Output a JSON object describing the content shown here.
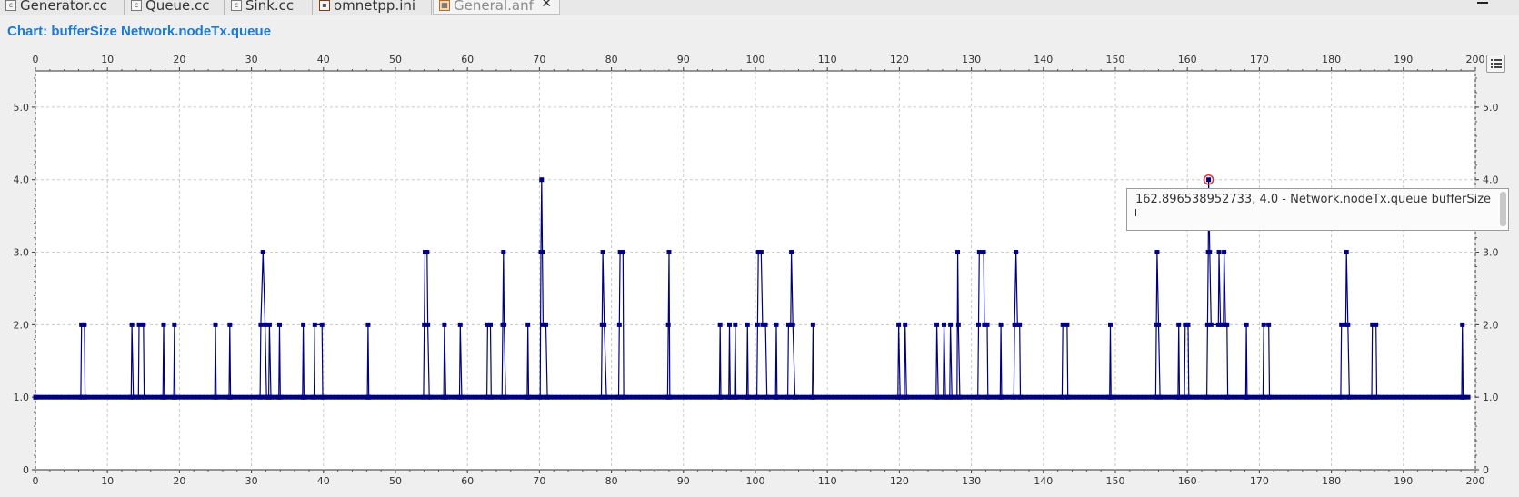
{
  "tabs": [
    {
      "label": "Generator.cc",
      "icon": "cpp-file-icon"
    },
    {
      "label": "Queue.cc",
      "icon": "cpp-file-icon"
    },
    {
      "label": "Sink.cc",
      "icon": "cpp-file-icon"
    },
    {
      "label": "omnetpp.ini",
      "icon": "ini-file-icon"
    },
    {
      "label": "General.anf",
      "icon": "analysis-file-icon",
      "active": true
    }
  ],
  "tooltip": {
    "text": "162.896538952733, 4.0 - Network.nodeTx.queue bufferSize"
  },
  "colors": {
    "line": "#000080",
    "title": "#1a7ad9",
    "highlight": "#e03030"
  },
  "chart_data": {
    "type": "line",
    "title": "Chart: bufferSize Network.nodeTx.queue",
    "xlabel": "",
    "ylabel": "",
    "xlim": [
      0,
      200
    ],
    "ylim": [
      0,
      5.5
    ],
    "xticks": [
      0,
      10,
      20,
      30,
      40,
      50,
      60,
      70,
      80,
      90,
      100,
      110,
      120,
      130,
      140,
      150,
      160,
      170,
      180,
      190,
      200
    ],
    "xtick_labels": [
      "0",
      "10",
      "20",
      "30",
      "40",
      "50",
      "60",
      "70",
      "80",
      "90",
      "100",
      "110",
      "120",
      "130",
      "140",
      "150",
      "160",
      "170",
      "180",
      "190",
      "200"
    ],
    "yticks": [
      0,
      1,
      2,
      3,
      4,
      5
    ],
    "ytick_labels": [
      "0",
      "1.0",
      "2.0",
      "3.0",
      "4.0",
      "5.0"
    ],
    "grid": true,
    "series": [
      {
        "values": [
          [
            0,
            1
          ],
          [
            6.3,
            1
          ],
          [
            6.4,
            2
          ],
          [
            6.8,
            2
          ],
          [
            6.9,
            1
          ],
          [
            13.3,
            1
          ],
          [
            13.4,
            2
          ],
          [
            13.6,
            1
          ],
          [
            14.3,
            1
          ],
          [
            14.4,
            2
          ],
          [
            15.0,
            2
          ],
          [
            15.1,
            1
          ],
          [
            17.7,
            1
          ],
          [
            17.8,
            2
          ],
          [
            17.9,
            1
          ],
          [
            19.2,
            1
          ],
          [
            19.3,
            2
          ],
          [
            19.4,
            1
          ],
          [
            24.9,
            1
          ],
          [
            25.0,
            2
          ],
          [
            25.1,
            1
          ],
          [
            26.9,
            1
          ],
          [
            27.0,
            2
          ],
          [
            27.1,
            1
          ],
          [
            31.2,
            1
          ],
          [
            31.3,
            2
          ],
          [
            31.6,
            3
          ],
          [
            31.9,
            2
          ],
          [
            32.1,
            1
          ],
          [
            32.4,
            1
          ],
          [
            32.5,
            2
          ],
          [
            32.7,
            1
          ],
          [
            33.8,
            1
          ],
          [
            33.9,
            2
          ],
          [
            34.0,
            1
          ],
          [
            37.1,
            1
          ],
          [
            37.2,
            2
          ],
          [
            37.3,
            1
          ],
          [
            38.7,
            1
          ],
          [
            38.8,
            2
          ],
          [
            39.8,
            2
          ],
          [
            39.9,
            1
          ],
          [
            46.1,
            1
          ],
          [
            46.2,
            2
          ],
          [
            46.3,
            1
          ],
          [
            53.9,
            1
          ],
          [
            54.0,
            2
          ],
          [
            54.1,
            3
          ],
          [
            54.4,
            3
          ],
          [
            54.5,
            2
          ],
          [
            54.7,
            1
          ],
          [
            56.7,
            1
          ],
          [
            56.8,
            2
          ],
          [
            57.0,
            1
          ],
          [
            58.9,
            1
          ],
          [
            59.0,
            2
          ],
          [
            59.2,
            1
          ],
          [
            62.7,
            1
          ],
          [
            62.8,
            2
          ],
          [
            63.2,
            2
          ],
          [
            63.3,
            1
          ],
          [
            64.8,
            1
          ],
          [
            64.9,
            2
          ],
          [
            65.0,
            3
          ],
          [
            65.1,
            2
          ],
          [
            65.3,
            1
          ],
          [
            68.3,
            1
          ],
          [
            68.4,
            2
          ],
          [
            68.5,
            1
          ],
          [
            70.1,
            1
          ],
          [
            70.2,
            3
          ],
          [
            70.3,
            4
          ],
          [
            70.4,
            3
          ],
          [
            70.5,
            2
          ],
          [
            70.9,
            2
          ],
          [
            71.1,
            1
          ],
          [
            78.6,
            1
          ],
          [
            78.7,
            2
          ],
          [
            78.8,
            3
          ],
          [
            79.0,
            2
          ],
          [
            79.3,
            1
          ],
          [
            81.0,
            1
          ],
          [
            81.1,
            2
          ],
          [
            81.2,
            3
          ],
          [
            81.6,
            3
          ],
          [
            81.7,
            1
          ],
          [
            87.8,
            1
          ],
          [
            87.9,
            2
          ],
          [
            88.0,
            3
          ],
          [
            88.1,
            1
          ],
          [
            95.0,
            1
          ],
          [
            95.1,
            2
          ],
          [
            95.2,
            1
          ],
          [
            96.3,
            1
          ],
          [
            96.4,
            2
          ],
          [
            96.5,
            1
          ],
          [
            97.1,
            1
          ],
          [
            97.2,
            2
          ],
          [
            97.3,
            1
          ],
          [
            98.8,
            1
          ],
          [
            98.9,
            2
          ],
          [
            99.0,
            1
          ],
          [
            100.2,
            1
          ],
          [
            100.3,
            2
          ],
          [
            100.4,
            3
          ],
          [
            100.8,
            3
          ],
          [
            101.0,
            2
          ],
          [
            101.4,
            2
          ],
          [
            101.6,
            1
          ],
          [
            102.8,
            1
          ],
          [
            102.9,
            2
          ],
          [
            103.0,
            1
          ],
          [
            104.5,
            1
          ],
          [
            104.6,
            2
          ],
          [
            104.9,
            2
          ],
          [
            105.0,
            3
          ],
          [
            105.2,
            2
          ],
          [
            105.5,
            1
          ],
          [
            107.9,
            1
          ],
          [
            108.0,
            2
          ],
          [
            108.1,
            1
          ],
          [
            119.8,
            1
          ],
          [
            119.9,
            2
          ],
          [
            120.1,
            1
          ],
          [
            120.7,
            1
          ],
          [
            120.8,
            2
          ],
          [
            121.0,
            1
          ],
          [
            125.1,
            1
          ],
          [
            125.2,
            2
          ],
          [
            125.4,
            1
          ],
          [
            126.1,
            1
          ],
          [
            126.2,
            2
          ],
          [
            126.4,
            1
          ],
          [
            127.0,
            1
          ],
          [
            127.1,
            2
          ],
          [
            127.3,
            1
          ],
          [
            128.0,
            1
          ],
          [
            128.1,
            3
          ],
          [
            128.2,
            2
          ],
          [
            128.4,
            1
          ],
          [
            130.9,
            1
          ],
          [
            131.0,
            2
          ],
          [
            131.1,
            3
          ],
          [
            131.7,
            3
          ],
          [
            131.8,
            2
          ],
          [
            132.2,
            2
          ],
          [
            132.3,
            1
          ],
          [
            134.0,
            1
          ],
          [
            134.1,
            2
          ],
          [
            134.2,
            1
          ],
          [
            135.9,
            1
          ],
          [
            136.0,
            2
          ],
          [
            136.2,
            3
          ],
          [
            136.4,
            2
          ],
          [
            136.7,
            2
          ],
          [
            136.8,
            1
          ],
          [
            142.6,
            1
          ],
          [
            142.7,
            2
          ],
          [
            143.3,
            2
          ],
          [
            143.4,
            1
          ],
          [
            149.2,
            1
          ],
          [
            149.3,
            2
          ],
          [
            149.4,
            1
          ],
          [
            155.6,
            1
          ],
          [
            155.7,
            2
          ],
          [
            155.8,
            3
          ],
          [
            156.0,
            2
          ],
          [
            156.2,
            1
          ],
          [
            158.7,
            1
          ],
          [
            158.8,
            2
          ],
          [
            158.9,
            1
          ],
          [
            159.6,
            1
          ],
          [
            159.7,
            2
          ],
          [
            160.1,
            2
          ],
          [
            160.2,
            1
          ],
          [
            162.7,
            1
          ],
          [
            162.8,
            2
          ],
          [
            162.9,
            3
          ],
          [
            162.95,
            4
          ],
          [
            163.1,
            3
          ],
          [
            163.3,
            2
          ],
          [
            164.3,
            2
          ],
          [
            164.4,
            3
          ],
          [
            164.6,
            2
          ],
          [
            165.0,
            2
          ],
          [
            165.1,
            3
          ],
          [
            165.3,
            2
          ],
          [
            165.5,
            2
          ],
          [
            165.6,
            1
          ],
          [
            168.1,
            1
          ],
          [
            168.2,
            2
          ],
          [
            168.3,
            1
          ],
          [
            170.5,
            1
          ],
          [
            170.6,
            2
          ],
          [
            171.3,
            2
          ],
          [
            171.4,
            1
          ],
          [
            181.3,
            1
          ],
          [
            181.4,
            2
          ],
          [
            182.0,
            2
          ],
          [
            182.1,
            3
          ],
          [
            182.3,
            2
          ],
          [
            182.5,
            1
          ],
          [
            185.6,
            1
          ],
          [
            185.7,
            2
          ],
          [
            186.2,
            2
          ],
          [
            186.3,
            1
          ],
          [
            198.1,
            1
          ],
          [
            198.2,
            2
          ],
          [
            198.3,
            1
          ],
          [
            199.0,
            1
          ]
        ]
      }
    ],
    "highlight_point": [
      162.95,
      4
    ]
  }
}
